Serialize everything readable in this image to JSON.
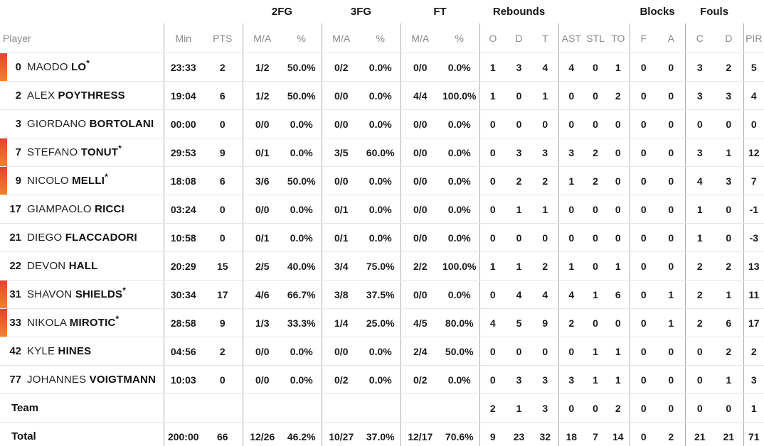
{
  "table": {
    "colors": {
      "accent_bar_top": "#E8402F",
      "accent_bar_bottom": "#F9812A",
      "divider_vertical": "#ADADAD",
      "divider_horizontal": "#E6E6E6",
      "header_sub_text": "#8A8A8A",
      "body_text": "#1B1B1B"
    },
    "starter_mark": "*",
    "group_headers": [
      {
        "label": "",
        "span": 3,
        "name": "group-spacer-left"
      },
      {
        "label": "2FG",
        "span": 2,
        "name": "group-2fg"
      },
      {
        "label": "3FG",
        "span": 2,
        "name": "group-3fg"
      },
      {
        "label": "FT",
        "span": 2,
        "name": "group-ft"
      },
      {
        "label": "Rebounds",
        "span": 3,
        "name": "group-rebounds"
      },
      {
        "label": "",
        "span": 3,
        "name": "group-spacer-mid"
      },
      {
        "label": "Blocks",
        "span": 2,
        "name": "group-blocks"
      },
      {
        "label": "Fouls",
        "span": 2,
        "name": "group-fouls"
      },
      {
        "label": "",
        "span": 1,
        "name": "group-spacer-right"
      }
    ],
    "sub_headers": [
      "Player",
      "Min",
      "PTS",
      "M/A",
      "%",
      "M/A",
      "%",
      "M/A",
      "%",
      "O",
      "D",
      "T",
      "AST",
      "STL",
      "TO",
      "F",
      "A",
      "C",
      "D",
      "PIR"
    ],
    "players": [
      {
        "number": "0",
        "first": "MAODO",
        "last": "LO",
        "starter": true,
        "min": "23:33",
        "pts": "2",
        "fg2": "1/2",
        "fg2_pct": "50.0%",
        "fg3": "0/2",
        "fg3_pct": "0.0%",
        "ft": "0/0",
        "ft_pct": "0.0%",
        "reb_o": "1",
        "reb_d": "3",
        "reb_t": "4",
        "ast": "4",
        "stl": "0",
        "to": "1",
        "blk_f": "0",
        "blk_a": "0",
        "foul_c": "3",
        "foul_d": "2",
        "pir": "5"
      },
      {
        "number": "2",
        "first": "ALEX",
        "last": "POYTHRESS",
        "starter": false,
        "min": "19:04",
        "pts": "6",
        "fg2": "1/2",
        "fg2_pct": "50.0%",
        "fg3": "0/0",
        "fg3_pct": "0.0%",
        "ft": "4/4",
        "ft_pct": "100.0%",
        "reb_o": "1",
        "reb_d": "0",
        "reb_t": "1",
        "ast": "0",
        "stl": "0",
        "to": "2",
        "blk_f": "0",
        "blk_a": "0",
        "foul_c": "3",
        "foul_d": "3",
        "pir": "4"
      },
      {
        "number": "3",
        "first": "GIORDANO",
        "last": "BORTOLANI",
        "starter": false,
        "min": "00:00",
        "pts": "0",
        "fg2": "0/0",
        "fg2_pct": "0.0%",
        "fg3": "0/0",
        "fg3_pct": "0.0%",
        "ft": "0/0",
        "ft_pct": "0.0%",
        "reb_o": "0",
        "reb_d": "0",
        "reb_t": "0",
        "ast": "0",
        "stl": "0",
        "to": "0",
        "blk_f": "0",
        "blk_a": "0",
        "foul_c": "0",
        "foul_d": "0",
        "pir": "0"
      },
      {
        "number": "7",
        "first": "STEFANO",
        "last": "TONUT",
        "starter": true,
        "min": "29:53",
        "pts": "9",
        "fg2": "0/1",
        "fg2_pct": "0.0%",
        "fg3": "3/5",
        "fg3_pct": "60.0%",
        "ft": "0/0",
        "ft_pct": "0.0%",
        "reb_o": "0",
        "reb_d": "3",
        "reb_t": "3",
        "ast": "3",
        "stl": "2",
        "to": "0",
        "blk_f": "0",
        "blk_a": "0",
        "foul_c": "3",
        "foul_d": "1",
        "pir": "12"
      },
      {
        "number": "9",
        "first": "NICOLO",
        "last": "MELLI",
        "starter": true,
        "min": "18:08",
        "pts": "6",
        "fg2": "3/6",
        "fg2_pct": "50.0%",
        "fg3": "0/0",
        "fg3_pct": "0.0%",
        "ft": "0/0",
        "ft_pct": "0.0%",
        "reb_o": "0",
        "reb_d": "2",
        "reb_t": "2",
        "ast": "1",
        "stl": "2",
        "to": "0",
        "blk_f": "0",
        "blk_a": "0",
        "foul_c": "4",
        "foul_d": "3",
        "pir": "7"
      },
      {
        "number": "17",
        "first": "GIAMPAOLO",
        "last": "RICCI",
        "starter": false,
        "min": "03:24",
        "pts": "0",
        "fg2": "0/0",
        "fg2_pct": "0.0%",
        "fg3": "0/1",
        "fg3_pct": "0.0%",
        "ft": "0/0",
        "ft_pct": "0.0%",
        "reb_o": "0",
        "reb_d": "1",
        "reb_t": "1",
        "ast": "0",
        "stl": "0",
        "to": "0",
        "blk_f": "0",
        "blk_a": "0",
        "foul_c": "1",
        "foul_d": "0",
        "pir": "-1"
      },
      {
        "number": "21",
        "first": "DIEGO",
        "last": "FLACCADORI",
        "starter": false,
        "min": "10:58",
        "pts": "0",
        "fg2": "0/1",
        "fg2_pct": "0.0%",
        "fg3": "0/1",
        "fg3_pct": "0.0%",
        "ft": "0/0",
        "ft_pct": "0.0%",
        "reb_o": "0",
        "reb_d": "0",
        "reb_t": "0",
        "ast": "0",
        "stl": "0",
        "to": "0",
        "blk_f": "0",
        "blk_a": "0",
        "foul_c": "1",
        "foul_d": "0",
        "pir": "-3"
      },
      {
        "number": "22",
        "first": "DEVON",
        "last": "HALL",
        "starter": false,
        "min": "20:29",
        "pts": "15",
        "fg2": "2/5",
        "fg2_pct": "40.0%",
        "fg3": "3/4",
        "fg3_pct": "75.0%",
        "ft": "2/2",
        "ft_pct": "100.0%",
        "reb_o": "1",
        "reb_d": "1",
        "reb_t": "2",
        "ast": "1",
        "stl": "0",
        "to": "1",
        "blk_f": "0",
        "blk_a": "0",
        "foul_c": "2",
        "foul_d": "2",
        "pir": "13"
      },
      {
        "number": "31",
        "first": "SHAVON",
        "last": "SHIELDS",
        "starter": true,
        "min": "30:34",
        "pts": "17",
        "fg2": "4/6",
        "fg2_pct": "66.7%",
        "fg3": "3/8",
        "fg3_pct": "37.5%",
        "ft": "0/0",
        "ft_pct": "0.0%",
        "reb_o": "0",
        "reb_d": "4",
        "reb_t": "4",
        "ast": "4",
        "stl": "1",
        "to": "6",
        "blk_f": "0",
        "blk_a": "1",
        "foul_c": "2",
        "foul_d": "1",
        "pir": "11"
      },
      {
        "number": "33",
        "first": "NIKOLA",
        "last": "MIROTIC",
        "starter": true,
        "min": "28:58",
        "pts": "9",
        "fg2": "1/3",
        "fg2_pct": "33.3%",
        "fg3": "1/4",
        "fg3_pct": "25.0%",
        "ft": "4/5",
        "ft_pct": "80.0%",
        "reb_o": "4",
        "reb_d": "5",
        "reb_t": "9",
        "ast": "2",
        "stl": "0",
        "to": "0",
        "blk_f": "0",
        "blk_a": "1",
        "foul_c": "2",
        "foul_d": "6",
        "pir": "17"
      },
      {
        "number": "42",
        "first": "KYLE",
        "last": "HINES",
        "starter": false,
        "min": "04:56",
        "pts": "2",
        "fg2": "0/0",
        "fg2_pct": "0.0%",
        "fg3": "0/0",
        "fg3_pct": "0.0%",
        "ft": "2/4",
        "ft_pct": "50.0%",
        "reb_o": "0",
        "reb_d": "0",
        "reb_t": "0",
        "ast": "0",
        "stl": "1",
        "to": "1",
        "blk_f": "0",
        "blk_a": "0",
        "foul_c": "0",
        "foul_d": "2",
        "pir": "2"
      },
      {
        "number": "77",
        "first": "JOHANNES",
        "last": "VOIGTMANN",
        "starter": false,
        "min": "10:03",
        "pts": "0",
        "fg2": "0/0",
        "fg2_pct": "0.0%",
        "fg3": "0/2",
        "fg3_pct": "0.0%",
        "ft": "0/2",
        "ft_pct": "0.0%",
        "reb_o": "0",
        "reb_d": "3",
        "reb_t": "3",
        "ast": "3",
        "stl": "1",
        "to": "1",
        "blk_f": "0",
        "blk_a": "0",
        "foul_c": "0",
        "foul_d": "1",
        "pir": "3"
      }
    ],
    "summary_rows": [
      {
        "label": "Team",
        "min": "",
        "pts": "",
        "fg2": "",
        "fg2_pct": "",
        "fg3": "",
        "fg3_pct": "",
        "ft": "",
        "ft_pct": "",
        "reb_o": "2",
        "reb_d": "1",
        "reb_t": "3",
        "ast": "0",
        "stl": "0",
        "to": "2",
        "blk_f": "0",
        "blk_a": "0",
        "foul_c": "0",
        "foul_d": "0",
        "pir": "1"
      },
      {
        "label": "Total",
        "min": "200:00",
        "pts": "66",
        "fg2": "12/26",
        "fg2_pct": "46.2%",
        "fg3": "10/27",
        "fg3_pct": "37.0%",
        "ft": "12/17",
        "ft_pct": "70.6%",
        "reb_o": "9",
        "reb_d": "23",
        "reb_t": "32",
        "ast": "18",
        "stl": "7",
        "to": "14",
        "blk_f": "0",
        "blk_a": "2",
        "foul_c": "21",
        "foul_d": "21",
        "pir": "71"
      }
    ]
  }
}
